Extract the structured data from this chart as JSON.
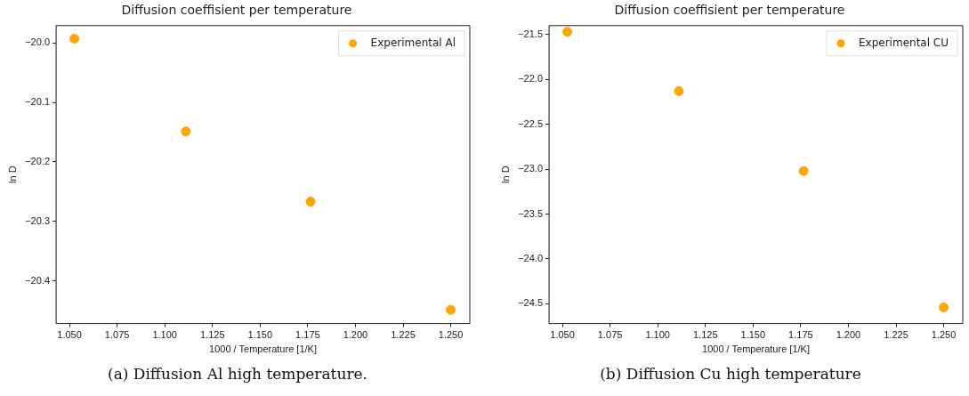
{
  "chart_data": [
    {
      "type": "scatter",
      "title": "Diffusion coeffisient per temperature",
      "xlabel": "1000 / Temperature [1/K]",
      "ylabel": "ln D",
      "x": [
        1.0526,
        1.1111,
        1.1765,
        1.25
      ],
      "series": [
        {
          "name": "Experimental Al",
          "color": "#ffa500",
          "values": [
            -19.993,
            -20.149,
            -20.267,
            -20.449
          ]
        }
      ],
      "xlim": [
        1.043,
        1.26
      ],
      "xticks": [
        {
          "value": 1.05,
          "label": "1.050"
        },
        1.075,
        {
          "value": 1.1,
          "label": "1.100"
        },
        1.125,
        {
          "value": 1.15,
          "label": "1.150"
        },
        1.175,
        {
          "value": 1.2,
          "label": "1.200"
        },
        1.225,
        {
          "value": 1.25,
          "label": "1.250"
        }
      ],
      "ylim": [
        -20.472,
        -19.971
      ],
      "yticks": [
        {
          "value": -20.0,
          "label": "−20.0"
        },
        {
          "value": -20.1,
          "label": "−20.1"
        },
        {
          "value": -20.2,
          "label": "−20.2"
        },
        {
          "value": -20.3,
          "label": "−20.3"
        },
        {
          "value": -20.4,
          "label": "−20.4"
        }
      ],
      "grid": false,
      "legend": "top right",
      "marker": "circle",
      "annotations": [
        "(a) Diffusion Al high temperature."
      ]
    },
    {
      "type": "scatter",
      "title": "Diffusion coeffisient per temperature",
      "xlabel": "1000 / Temperature [1/K]",
      "ylabel": "ln D",
      "x": [
        1.0526,
        1.1111,
        1.1765,
        1.25
      ],
      "series": [
        {
          "name": "Experimental CU",
          "color": "#ffa500",
          "values": [
            -21.47,
            -22.13,
            -23.02,
            -24.54
          ]
        }
      ],
      "xlim": [
        1.043,
        1.26
      ],
      "xticks": [
        {
          "value": 1.05,
          "label": "1.050"
        },
        1.075,
        {
          "value": 1.1,
          "label": "1.100"
        },
        1.125,
        {
          "value": 1.15,
          "label": "1.150"
        },
        1.175,
        {
          "value": 1.2,
          "label": "1.200"
        },
        1.225,
        {
          "value": 1.25,
          "label": "1.250"
        }
      ],
      "ylim": [
        -24.72,
        -21.4
      ],
      "yticks": [
        {
          "value": -21.5,
          "label": "−21.5"
        },
        {
          "value": -22.0,
          "label": "−22.0"
        },
        {
          "value": -22.5,
          "label": "−22.5"
        },
        {
          "value": -23.0,
          "label": "−23.0"
        },
        {
          "value": -23.5,
          "label": "−23.5"
        },
        {
          "value": -24.0,
          "label": "−24.0"
        },
        {
          "value": -24.5,
          "label": "−24.5"
        }
      ],
      "grid": false,
      "legend": "top right",
      "marker": "circle",
      "annotations": [
        "(b) Diffusion Cu high temperature"
      ]
    }
  ]
}
